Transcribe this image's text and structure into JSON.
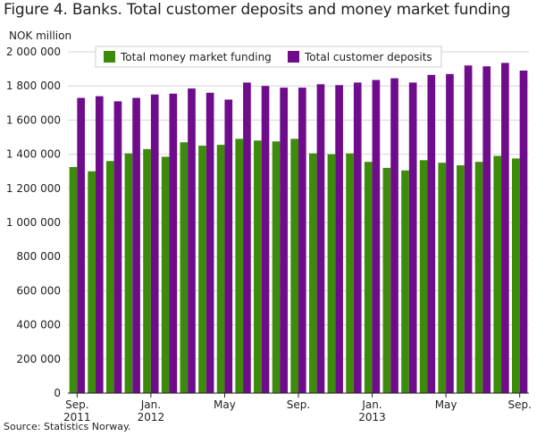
{
  "title": "Figure 4. Banks. Total customer deposits and money market funding",
  "source": "Source: Statistics Norway.",
  "chart_data": {
    "type": "bar",
    "ylabel": "NOK million",
    "ylim": [
      0,
      2000000
    ],
    "yticks": [
      0,
      200000,
      400000,
      600000,
      800000,
      1000000,
      1200000,
      1400000,
      1600000,
      1800000,
      2000000
    ],
    "ytick_labels": [
      "0",
      "200 000",
      "400 000",
      "600 000",
      "800 000",
      "1 000 000",
      "1 200 000",
      "1 400 000",
      "1 600 000",
      "1 800 000",
      "2 000 000"
    ],
    "xtick_labels": [
      {
        "index": 0,
        "lines": [
          "Sep.",
          "2011"
        ]
      },
      {
        "index": 4,
        "lines": [
          "Jan.",
          "2012"
        ]
      },
      {
        "index": 8,
        "lines": [
          "May"
        ]
      },
      {
        "index": 12,
        "lines": [
          "Sep."
        ]
      },
      {
        "index": 16,
        "lines": [
          "Jan.",
          "2013"
        ]
      },
      {
        "index": 20,
        "lines": [
          "May"
        ]
      },
      {
        "index": 24,
        "lines": [
          "Sep."
        ]
      }
    ],
    "grid": true,
    "legend_position": "top",
    "series": [
      {
        "name": "Total money market funding",
        "color": "#3d8b0a",
        "values": [
          1325000,
          1300000,
          1360000,
          1405000,
          1430000,
          1385000,
          1470000,
          1450000,
          1455000,
          1490000,
          1480000,
          1475000,
          1490000,
          1405000,
          1400000,
          1405000,
          1355000,
          1320000,
          1305000,
          1365000,
          1350000,
          1335000,
          1355000,
          1390000,
          1375000
        ]
      },
      {
        "name": "Total customer deposits",
        "color": "#6e0c8c",
        "values": [
          1730000,
          1740000,
          1710000,
          1730000,
          1750000,
          1755000,
          1785000,
          1760000,
          1720000,
          1820000,
          1800000,
          1790000,
          1790000,
          1810000,
          1805000,
          1820000,
          1835000,
          1845000,
          1820000,
          1865000,
          1870000,
          1920000,
          1915000,
          1935000,
          1890000
        ]
      }
    ]
  }
}
